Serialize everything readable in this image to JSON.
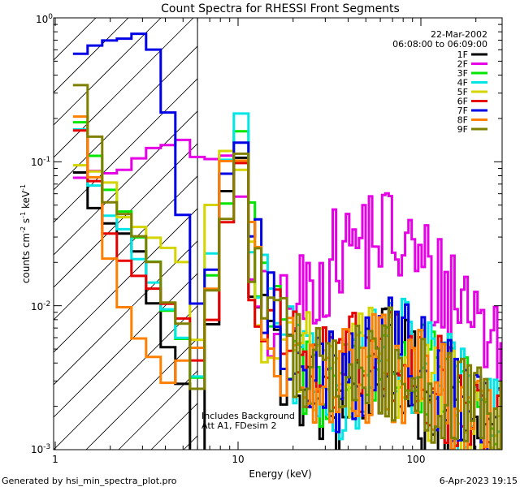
{
  "chart_data": {
    "type": "line",
    "title": "Count Spectra for RHESSI Front Segments",
    "xlabel": "Energy (keV)",
    "ylabel": "counts cm",
    "ylabel_sup1": "-2",
    "ylabel_mid": " s",
    "ylabel_sup2": "-1",
    "ylabel_end": " keV",
    "ylabel_sup3": "-1",
    "x_scale": "log",
    "y_scale": "log",
    "xlim": [
      1,
      300
    ],
    "ylim": [
      0.001,
      1
    ],
    "x_major_ticks": [
      {
        "value": 10,
        "label": "10"
      },
      {
        "value": 100,
        "label": "100"
      }
    ],
    "x_first_label": "1",
    "y_major_ticks": [
      {
        "value": 0.001,
        "base": "10",
        "exp": "-3"
      },
      {
        "value": 0.01,
        "base": "10",
        "exp": "-2"
      },
      {
        "value": 0.1,
        "base": "10",
        "exp": "-1"
      },
      {
        "value": 1,
        "base": "10",
        "exp": "0"
      }
    ],
    "date": "22-Mar-2002",
    "time_range": "06:08:00 to 06:09:00",
    "attenuator_energy_keV": 6,
    "annotations": [
      "Includes Background",
      "Att A1, FDesim 2"
    ],
    "legend": {
      "position": "top-right",
      "entries": [
        {
          "name": "1F",
          "color": "#000000"
        },
        {
          "name": "2F",
          "color": "#e600e6"
        },
        {
          "name": "3F",
          "color": "#00e600"
        },
        {
          "name": "4F",
          "color": "#00e6e6"
        },
        {
          "name": "5F",
          "color": "#d4d400"
        },
        {
          "name": "6F",
          "color": "#e60000"
        },
        {
          "name": "7F",
          "color": "#0000e6"
        },
        {
          "name": "8F",
          "color": "#ff8000"
        },
        {
          "name": "9F",
          "color": "#808000"
        }
      ]
    },
    "series": [
      {
        "name": "1F",
        "color": "#000000",
        "points": [
          [
            1.25,
            0.11
          ],
          [
            1.5,
            0.06
          ],
          [
            2,
            0.035
          ],
          [
            2.5,
            0.032
          ],
          [
            3,
            0.02
          ],
          [
            3.5,
            0.01
          ],
          [
            4,
            0.006
          ],
          [
            5,
            0.003
          ],
          [
            6,
            0.0012
          ],
          [
            7,
            0.006
          ],
          [
            8,
            0.02
          ],
          [
            9,
            0.08
          ],
          [
            10,
            0.13
          ],
          [
            11,
            0.07
          ],
          [
            12,
            0.02
          ],
          [
            13,
            0.01
          ],
          [
            15,
            0.006
          ],
          [
            18,
            0.004
          ],
          [
            22,
            0.003
          ],
          [
            28,
            0.002
          ],
          [
            35,
            0.0018
          ],
          [
            45,
            0.003
          ],
          [
            60,
            0.004
          ],
          [
            80,
            0.0035
          ],
          [
            110,
            0.002
          ],
          [
            150,
            0.0016
          ],
          [
            200,
            0.0013
          ],
          [
            260,
            0.0011
          ]
        ]
      },
      {
        "name": "2F",
        "color": "#e600e6",
        "points": [
          [
            1.25,
            0.085
          ],
          [
            1.5,
            0.082
          ],
          [
            2,
            0.08
          ],
          [
            2.5,
            0.09
          ],
          [
            3,
            0.1
          ],
          [
            3.5,
            0.12
          ],
          [
            4,
            0.14
          ],
          [
            4.5,
            0.12
          ],
          [
            5,
            0.15
          ],
          [
            5.5,
            0.13
          ],
          [
            6,
            0.14
          ],
          [
            7,
            0.1
          ],
          [
            8,
            0.07
          ],
          [
            9,
            0.06
          ],
          [
            10,
            0.08
          ],
          [
            11,
            0.03
          ],
          [
            12,
            0.015
          ],
          [
            14,
            0.01
          ],
          [
            17,
            0.008
          ],
          [
            20,
            0.009
          ],
          [
            25,
            0.013
          ],
          [
            30,
            0.018
          ],
          [
            35,
            0.022
          ],
          [
            40,
            0.026
          ],
          [
            50,
            0.03
          ],
          [
            60,
            0.033
          ],
          [
            70,
            0.028
          ],
          [
            80,
            0.026
          ],
          [
            100,
            0.019
          ],
          [
            120,
            0.014
          ],
          [
            150,
            0.012
          ],
          [
            180,
            0.011
          ],
          [
            220,
            0.0075
          ],
          [
            260,
            0.005
          ],
          [
            300,
            0.0045
          ]
        ]
      },
      {
        "name": "3F",
        "color": "#00e600",
        "points": [
          [
            1.25,
            0.24
          ],
          [
            1.5,
            0.15
          ],
          [
            2,
            0.06
          ],
          [
            2.5,
            0.04
          ],
          [
            3,
            0.03
          ],
          [
            3.5,
            0.02
          ],
          [
            4,
            0.01
          ],
          [
            5,
            0.006
          ],
          [
            6,
            0.004
          ],
          [
            7,
            0.01
          ],
          [
            8,
            0.03
          ],
          [
            9,
            0.1
          ],
          [
            10,
            0.2
          ],
          [
            11,
            0.1
          ],
          [
            12,
            0.025
          ],
          [
            14,
            0.01
          ],
          [
            18,
            0.005
          ],
          [
            25,
            0.003
          ],
          [
            35,
            0.003
          ],
          [
            50,
            0.004
          ],
          [
            70,
            0.0045
          ],
          [
            100,
            0.003
          ],
          [
            150,
            0.0025
          ],
          [
            250,
            0.0013
          ]
        ]
      },
      {
        "name": "4F",
        "color": "#00e6e6",
        "points": [
          [
            1.25,
            0.25
          ],
          [
            1.5,
            0.1
          ],
          [
            2,
            0.04
          ],
          [
            2.5,
            0.03
          ],
          [
            3,
            0.02
          ],
          [
            3.5,
            0.013
          ],
          [
            4,
            0.01
          ],
          [
            5,
            0.006
          ],
          [
            6,
            0.004
          ],
          [
            7,
            0.012
          ],
          [
            8,
            0.04
          ],
          [
            9,
            0.15
          ],
          [
            10,
            0.28
          ],
          [
            11,
            0.12
          ],
          [
            12,
            0.03
          ],
          [
            14,
            0.01
          ],
          [
            18,
            0.005
          ],
          [
            25,
            0.003
          ],
          [
            35,
            0.0025
          ],
          [
            50,
            0.004
          ],
          [
            70,
            0.005
          ],
          [
            100,
            0.004
          ],
          [
            150,
            0.0025
          ],
          [
            250,
            0.0013
          ]
        ]
      },
      {
        "name": "5F",
        "color": "#d4d400",
        "points": [
          [
            1.25,
            0.11
          ],
          [
            1.5,
            0.09
          ],
          [
            2,
            0.07
          ],
          [
            2.5,
            0.04
          ],
          [
            3,
            0.035
          ],
          [
            3.5,
            0.03
          ],
          [
            4,
            0.025
          ],
          [
            5,
            0.02
          ],
          [
            6,
            0.007
          ],
          [
            7,
            0.025
          ],
          [
            8,
            0.05
          ],
          [
            9,
            0.1
          ],
          [
            10,
            0.15
          ],
          [
            11,
            0.05
          ],
          [
            12,
            0.02
          ],
          [
            14,
            0.008
          ],
          [
            18,
            0.006
          ],
          [
            25,
            0.004
          ],
          [
            35,
            0.003
          ],
          [
            50,
            0.004
          ],
          [
            70,
            0.004
          ],
          [
            100,
            0.003
          ],
          [
            150,
            0.002
          ],
          [
            250,
            0.0012
          ]
        ]
      },
      {
        "name": "6F",
        "color": "#e60000",
        "points": [
          [
            1.25,
            0.22
          ],
          [
            1.5,
            0.12
          ],
          [
            2,
            0.03
          ],
          [
            2.5,
            0.02
          ],
          [
            3,
            0.015
          ],
          [
            3.5,
            0.012
          ],
          [
            4,
            0.01
          ],
          [
            5,
            0.008
          ],
          [
            6,
            0.005
          ],
          [
            7,
            0.01
          ],
          [
            8,
            0.03
          ],
          [
            9,
            0.08
          ],
          [
            10,
            0.14
          ],
          [
            11,
            0.07
          ],
          [
            12,
            0.02
          ],
          [
            14,
            0.01
          ],
          [
            18,
            0.006
          ],
          [
            25,
            0.004
          ],
          [
            35,
            0.003
          ],
          [
            50,
            0.004
          ],
          [
            70,
            0.004
          ],
          [
            100,
            0.003
          ],
          [
            150,
            0.0022
          ],
          [
            250,
            0.0012
          ]
        ]
      },
      {
        "name": "7F",
        "color": "#0000e6",
        "points": [
          [
            1.25,
            0.48
          ],
          [
            1.5,
            0.55
          ],
          [
            2,
            0.7
          ],
          [
            2.5,
            0.75
          ],
          [
            3,
            0.76
          ],
          [
            3.5,
            0.6
          ],
          [
            4,
            0.28
          ],
          [
            4.5,
            0.09
          ],
          [
            5,
            0.04
          ],
          [
            5.5,
            0.025
          ],
          [
            6,
            0.012
          ],
          [
            7,
            0.02
          ],
          [
            8,
            0.05
          ],
          [
            9,
            0.12
          ],
          [
            10,
            0.2
          ],
          [
            11,
            0.09
          ],
          [
            12,
            0.03
          ],
          [
            14,
            0.01
          ],
          [
            18,
            0.006
          ],
          [
            25,
            0.004
          ],
          [
            35,
            0.0028
          ],
          [
            50,
            0.004
          ],
          [
            70,
            0.005
          ],
          [
            100,
            0.004
          ],
          [
            150,
            0.0025
          ],
          [
            250,
            0.0013
          ]
        ]
      },
      {
        "name": "8F",
        "color": "#ff8000",
        "points": [
          [
            1.25,
            0.3
          ],
          [
            1.5,
            0.15
          ],
          [
            2,
            0.02
          ],
          [
            2.5,
            0.008
          ],
          [
            3,
            0.005
          ],
          [
            3.5,
            0.004
          ],
          [
            4,
            0.003
          ],
          [
            5,
            0.004
          ],
          [
            6,
            0.006
          ],
          [
            7,
            0.012
          ],
          [
            8,
            0.04
          ],
          [
            9,
            0.11
          ],
          [
            10,
            0.16
          ],
          [
            11,
            0.06
          ],
          [
            12,
            0.02
          ],
          [
            14,
            0.008
          ],
          [
            18,
            0.005
          ],
          [
            25,
            0.0035
          ],
          [
            35,
            0.003
          ],
          [
            50,
            0.0035
          ],
          [
            70,
            0.0035
          ],
          [
            100,
            0.0028
          ],
          [
            150,
            0.002
          ],
          [
            250,
            0.0011
          ]
        ]
      },
      {
        "name": "9F",
        "color": "#808000",
        "points": [
          [
            1.25,
            0.38
          ],
          [
            1.5,
            0.28
          ],
          [
            2,
            0.05
          ],
          [
            2.5,
            0.04
          ],
          [
            3,
            0.025
          ],
          [
            3.5,
            0.02
          ],
          [
            4,
            0.012
          ],
          [
            5,
            0.007
          ],
          [
            6,
            0.003
          ],
          [
            7,
            0.01
          ],
          [
            8,
            0.035
          ],
          [
            9,
            0.1
          ],
          [
            10,
            0.17
          ],
          [
            11,
            0.07
          ],
          [
            12,
            0.02
          ],
          [
            14,
            0.01
          ],
          [
            18,
            0.006
          ],
          [
            25,
            0.004
          ],
          [
            35,
            0.003
          ],
          [
            50,
            0.0035
          ],
          [
            70,
            0.004
          ],
          [
            100,
            0.003
          ],
          [
            150,
            0.0022
          ],
          [
            250,
            0.0012
          ]
        ]
      }
    ]
  },
  "footer": {
    "generated_by": "Generated by hsi_min_spectra_plot.pro",
    "timestamp": "6-Apr-2023 19:15"
  }
}
